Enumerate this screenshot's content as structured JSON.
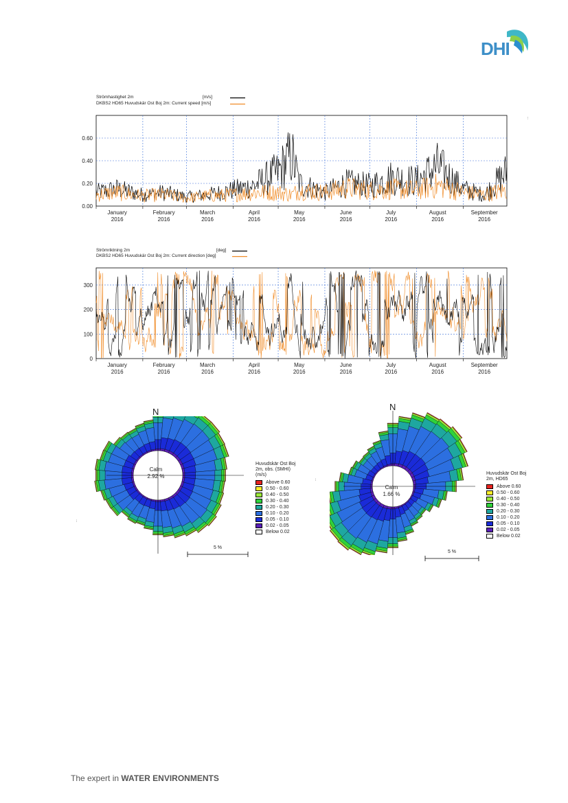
{
  "logo": {
    "text": "DHI"
  },
  "footer": {
    "prefix": "The expert in ",
    "emphasis": "WATER ENVIRONMENTS"
  },
  "side_text_1": "...",
  "colors": {
    "measured": "#000000",
    "model": "#f08a24",
    "grid": "#3a6fd8"
  },
  "chart_data": [
    {
      "type": "line",
      "legend": [
        {
          "name": "Strömhastighet 2m",
          "unit": "[m/s]",
          "color": "#000000"
        },
        {
          "name": "DKBS2 HD65 Huvudskär Ost Boj 2m: Current speed",
          "unit": "[m/s]",
          "color": "#f08a24"
        }
      ],
      "ylim": [
        0,
        0.8
      ],
      "yticks": [
        "0.00",
        "0.20",
        "0.40",
        "0.60"
      ],
      "months": [
        {
          "m": "January",
          "y": "2016"
        },
        {
          "m": "February",
          "y": "2016"
        },
        {
          "m": "March",
          "y": "2016"
        },
        {
          "m": "April",
          "y": "2016"
        },
        {
          "m": "May",
          "y": "2016"
        },
        {
          "m": "June",
          "y": "2016"
        },
        {
          "m": "July",
          "y": "2016"
        },
        {
          "m": "August",
          "y": "2016"
        },
        {
          "m": "September",
          "y": "2016"
        }
      ],
      "series": [
        {
          "name": "Strömhastighet 2m",
          "x": [
            "2016-01-01",
            "2016-01-15",
            "2016-02-01",
            "2016-02-15",
            "2016-03-01",
            "2016-03-15",
            "2016-04-01",
            "2016-04-15",
            "2016-05-01",
            "2016-05-10",
            "2016-05-15",
            "2016-06-01",
            "2016-06-15",
            "2016-07-01",
            "2016-07-15",
            "2016-08-01",
            "2016-08-15",
            "2016-09-01",
            "2016-09-15",
            "2016-09-30"
          ],
          "values": [
            0.12,
            0.15,
            0.1,
            0.12,
            0.08,
            0.1,
            0.14,
            0.18,
            0.3,
            0.45,
            0.2,
            0.12,
            0.2,
            0.18,
            0.25,
            0.22,
            0.35,
            0.15,
            0.1,
            0.3
          ]
        },
        {
          "name": "DKBS2 HD65 Huvudskär Ost Boj 2m: Current speed",
          "x": [
            "2016-01-01",
            "2016-01-15",
            "2016-02-01",
            "2016-02-15",
            "2016-03-01",
            "2016-03-15",
            "2016-04-01",
            "2016-04-15",
            "2016-05-01",
            "2016-05-10",
            "2016-05-15",
            "2016-06-01",
            "2016-06-15",
            "2016-07-01",
            "2016-07-15",
            "2016-08-01",
            "2016-08-15",
            "2016-09-01",
            "2016-09-15",
            "2016-09-30"
          ],
          "values": [
            0.1,
            0.12,
            0.09,
            0.1,
            0.07,
            0.09,
            0.1,
            0.12,
            0.12,
            0.1,
            0.14,
            0.12,
            0.16,
            0.14,
            0.15,
            0.14,
            0.18,
            0.12,
            0.1,
            0.14
          ]
        }
      ]
    },
    {
      "type": "line",
      "legend": [
        {
          "name": "Strömriktning 2m",
          "unit": "[deg]",
          "color": "#000000"
        },
        {
          "name": "DKBS2 HD65 Huvudskär Ost Boj 2m: Current direction",
          "unit": "[deg]",
          "color": "#f08a24"
        }
      ],
      "ylim": [
        0,
        370
      ],
      "yticks": [
        "0",
        "100",
        "200",
        "300"
      ],
      "months": [
        {
          "m": "January",
          "y": "2016"
        },
        {
          "m": "February",
          "y": "2016"
        },
        {
          "m": "March",
          "y": "2016"
        },
        {
          "m": "April",
          "y": "2016"
        },
        {
          "m": "May",
          "y": "2016"
        },
        {
          "m": "June",
          "y": "2016"
        },
        {
          "m": "July",
          "y": "2016"
        },
        {
          "m": "August",
          "y": "2016"
        },
        {
          "m": "September",
          "y": "2016"
        }
      ]
    },
    {
      "type": "rose",
      "north": "N",
      "calm_label": "Calm",
      "calm_value": "2.92 %",
      "legend_title": [
        "Huvudskär Ost Boj",
        "2m, obs. (SMHI)",
        "(m/s)"
      ],
      "scale_label": "5 %"
    },
    {
      "type": "rose",
      "north": "N",
      "calm_label": "Calm",
      "calm_value": "1.66 %",
      "legend_title": [
        "Huvudskär Ost Boj",
        "2m, HD65"
      ],
      "scale_label": "5 %"
    }
  ],
  "rose_classes": [
    {
      "label": "Above 0.60",
      "color": "#e8231f"
    },
    {
      "label": "0.50 - 0.60",
      "color": "#ffee2a"
    },
    {
      "label": "0.40 - 0.50",
      "color": "#9be83a"
    },
    {
      "label": "0.30 - 0.40",
      "color": "#2fd23a"
    },
    {
      "label": "0.20 - 0.30",
      "color": "#1ea7a0"
    },
    {
      "label": "0.10 - 0.20",
      "color": "#2c6fe0"
    },
    {
      "label": "0.05 - 0.10",
      "color": "#1a2bd8"
    },
    {
      "label": "0.02 - 0.05",
      "color": "#5a1fb8"
    },
    {
      "label": "Below 0.02",
      "color": "#ffffff"
    }
  ]
}
